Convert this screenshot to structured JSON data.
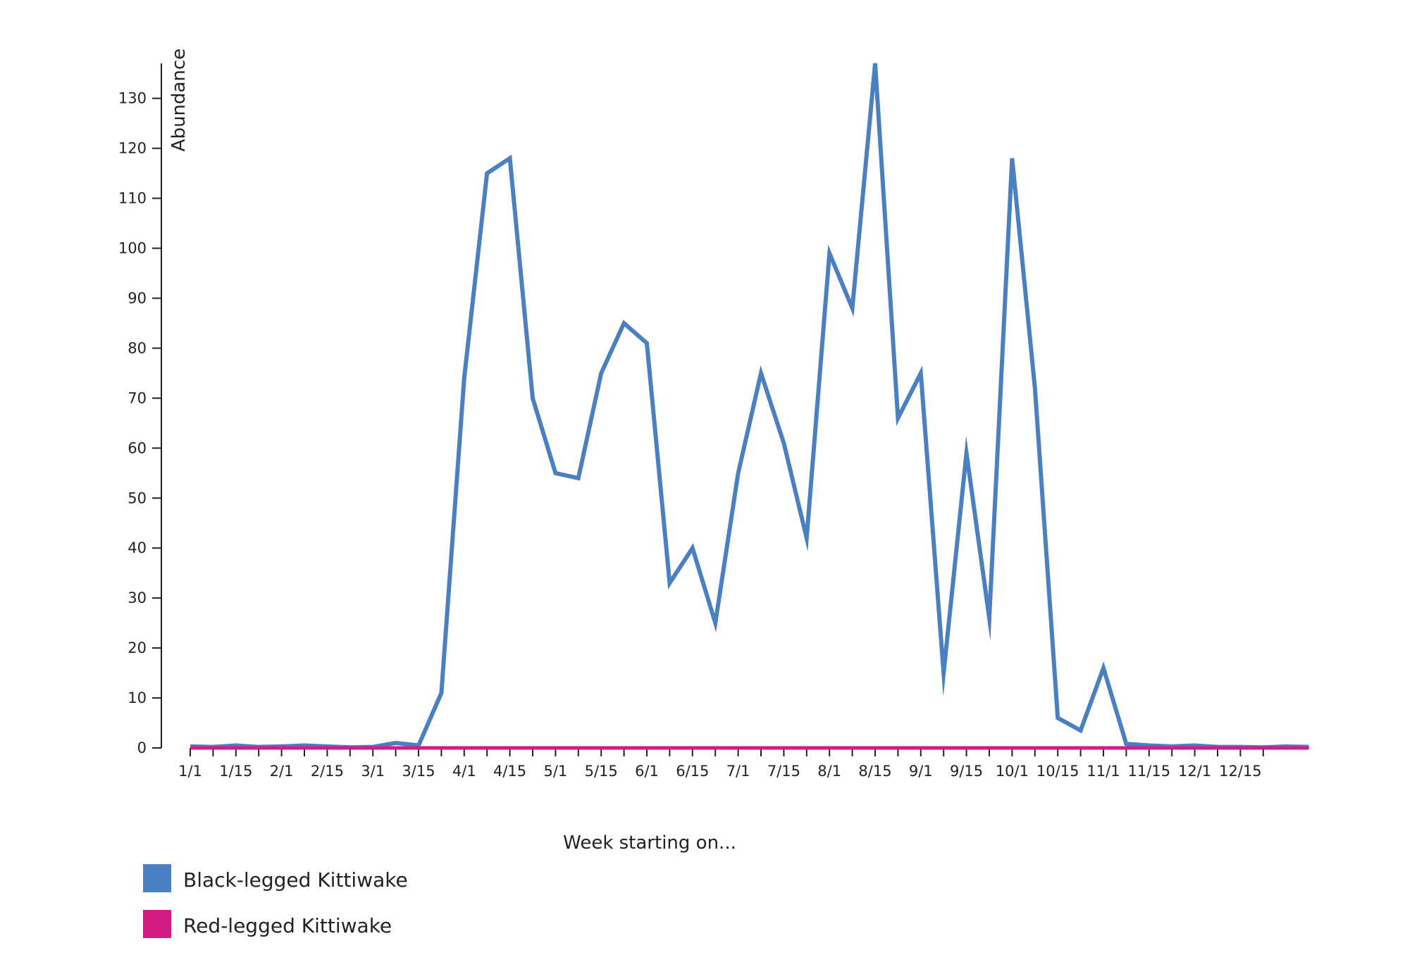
{
  "chart_data": {
    "type": "line",
    "xlabel": "Week starting on...",
    "ylabel": "Abundance",
    "ylim": [
      0,
      137
    ],
    "y_ticks": [
      0,
      10,
      20,
      30,
      40,
      50,
      60,
      70,
      80,
      90,
      100,
      110,
      120,
      130
    ],
    "x_tick_labels": [
      "1/1",
      "1/15",
      "2/1",
      "2/15",
      "3/1",
      "3/15",
      "4/1",
      "4/15",
      "5/1",
      "5/15",
      "6/1",
      "6/15",
      "7/1",
      "7/15",
      "8/1",
      "8/15",
      "9/1",
      "9/15",
      "10/1",
      "10/15",
      "11/1",
      "11/15",
      "12/1",
      "12/15"
    ],
    "weeks_per_month": 4,
    "grid": false,
    "legend_position": "bottom-left",
    "series": [
      {
        "name": "Black-legged Kittiwake",
        "color": "#4a7fc1",
        "values": [
          0.3,
          0.2,
          0.5,
          0.2,
          0.3,
          0.5,
          0.3,
          0.1,
          0.2,
          1.0,
          0.5,
          11,
          74,
          115,
          118,
          70,
          55,
          54,
          75,
          85,
          81,
          33,
          40,
          25,
          55,
          75,
          61,
          42,
          99,
          88,
          137,
          66,
          75,
          15,
          59,
          26,
          118,
          72,
          6,
          3.5,
          16,
          0.8,
          0.5,
          0.3,
          0.5,
          0.2,
          0.2,
          0.1,
          0.3,
          0.2
        ]
      },
      {
        "name": "Red-legged Kittiwake",
        "color": "#d41c84",
        "values": [
          0,
          0,
          0,
          0,
          0,
          0,
          0,
          0,
          0,
          0,
          0,
          0,
          0,
          0,
          0,
          0,
          0,
          0,
          0,
          0,
          0,
          0,
          0,
          0,
          0,
          0,
          0,
          0,
          0,
          0,
          0,
          0,
          0,
          0,
          0,
          0,
          0,
          0,
          0,
          0,
          0,
          0,
          0,
          0,
          0,
          0,
          0,
          0,
          0,
          0
        ]
      }
    ]
  }
}
